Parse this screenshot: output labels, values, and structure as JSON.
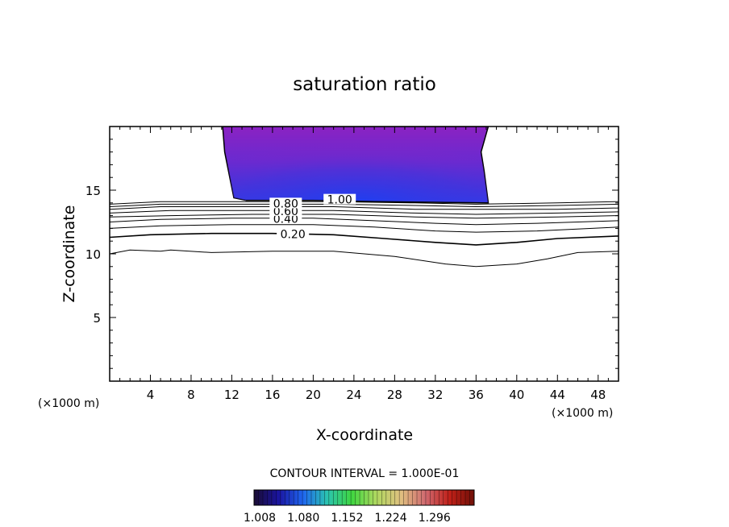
{
  "chart_data": {
    "type": "contour",
    "title": "saturation ratio",
    "xlabel": "X-coordinate",
    "ylabel": "Z-coordinate",
    "x_unit": "(×1000 m)",
    "z_unit": "(×1000 m)",
    "xlim": [
      0,
      50
    ],
    "ylim": [
      0,
      20
    ],
    "x_ticks": [
      "4",
      "8",
      "12",
      "16",
      "20",
      "24",
      "28",
      "32",
      "36",
      "40",
      "44",
      "48"
    ],
    "y_ticks": [
      "5",
      "10",
      "15"
    ],
    "contour_interval_text": "CONTOUR INTERVAL = 1.000E-01",
    "contour_labels": [
      {
        "text": "0.20",
        "x": 18,
        "z": 11.5
      },
      {
        "text": "0.40",
        "x": 17.3,
        "z": 12.7
      },
      {
        "text": "0.60",
        "x": 17.3,
        "z": 13.3
      },
      {
        "text": "0.80",
        "x": 17.3,
        "z": 13.9
      },
      {
        "text": "1.00",
        "x": 22.6,
        "z": 14.2
      }
    ],
    "contour_lines": [
      {
        "level": 0.1,
        "points": [
          [
            0,
            10
          ],
          [
            2,
            10.3
          ],
          [
            5,
            10.2
          ],
          [
            6,
            10.3
          ],
          [
            10,
            10.1
          ],
          [
            16,
            10.2
          ],
          [
            22,
            10.2
          ],
          [
            28,
            9.8
          ],
          [
            33,
            9.2
          ],
          [
            36,
            9.0
          ],
          [
            40,
            9.2
          ],
          [
            43,
            9.6
          ],
          [
            46,
            10.1
          ],
          [
            50,
            10.2
          ]
        ]
      },
      {
        "level": 0.2,
        "points": [
          [
            0,
            11.3
          ],
          [
            4,
            11.5
          ],
          [
            10,
            11.6
          ],
          [
            16,
            11.6
          ],
          [
            22,
            11.5
          ],
          [
            27,
            11.2
          ],
          [
            32,
            10.9
          ],
          [
            36,
            10.7
          ],
          [
            40,
            10.9
          ],
          [
            44,
            11.2
          ],
          [
            50,
            11.4
          ]
        ]
      },
      {
        "level": 0.3,
        "points": [
          [
            0,
            12.0
          ],
          [
            5,
            12.2
          ],
          [
            12,
            12.3
          ],
          [
            20,
            12.3
          ],
          [
            26,
            12.1
          ],
          [
            32,
            11.8
          ],
          [
            36,
            11.7
          ],
          [
            42,
            11.8
          ],
          [
            50,
            12.1
          ]
        ]
      },
      {
        "level": 0.4,
        "points": [
          [
            0,
            12.5
          ],
          [
            5,
            12.7
          ],
          [
            12,
            12.8
          ],
          [
            20,
            12.8
          ],
          [
            26,
            12.6
          ],
          [
            32,
            12.4
          ],
          [
            36,
            12.3
          ],
          [
            42,
            12.4
          ],
          [
            50,
            12.6
          ]
        ]
      },
      {
        "level": 0.5,
        "points": [
          [
            0,
            12.9
          ],
          [
            6,
            13.0
          ],
          [
            14,
            13.1
          ],
          [
            22,
            13.1
          ],
          [
            30,
            12.9
          ],
          [
            36,
            12.8
          ],
          [
            44,
            12.9
          ],
          [
            50,
            13.0
          ]
        ]
      },
      {
        "level": 0.6,
        "points": [
          [
            0,
            13.2
          ],
          [
            6,
            13.4
          ],
          [
            14,
            13.4
          ],
          [
            22,
            13.4
          ],
          [
            30,
            13.2
          ],
          [
            36,
            13.1
          ],
          [
            44,
            13.2
          ],
          [
            50,
            13.3
          ]
        ]
      },
      {
        "level": 0.7,
        "points": [
          [
            0,
            13.5
          ],
          [
            5,
            13.7
          ],
          [
            14,
            13.7
          ],
          [
            22,
            13.7
          ],
          [
            30,
            13.5
          ],
          [
            36,
            13.5
          ],
          [
            44,
            13.5
          ],
          [
            50,
            13.6
          ]
        ]
      },
      {
        "level": 0.8,
        "points": [
          [
            0,
            13.7
          ],
          [
            5,
            13.9
          ],
          [
            14,
            13.9
          ],
          [
            22,
            13.9
          ],
          [
            30,
            13.8
          ],
          [
            36,
            13.7
          ],
          [
            44,
            13.8
          ],
          [
            50,
            13.9
          ]
        ]
      },
      {
        "level": 0.9,
        "points": [
          [
            0,
            13.9
          ],
          [
            5,
            14.1
          ],
          [
            14,
            14.1
          ],
          [
            22,
            14.1
          ],
          [
            30,
            14.0
          ],
          [
            36,
            13.9
          ],
          [
            44,
            14.0
          ],
          [
            50,
            14.1
          ]
        ]
      },
      {
        "level": 1.0,
        "points": [
          [
            13.4,
            14.2
          ],
          [
            20,
            14.2
          ],
          [
            26,
            14.1
          ],
          [
            32,
            14.05
          ],
          [
            37.2,
            14.0
          ]
        ]
      }
    ],
    "colorbar": {
      "ticks": [
        "1.008",
        "1.080",
        "1.152",
        "1.224",
        "1.296"
      ],
      "stops": [
        "#1a0c33",
        "#1a14a0",
        "#1f66f0",
        "#2bc4b0",
        "#3fd640",
        "#b0d860",
        "#e0c080",
        "#d06a70",
        "#c02018",
        "#701008"
      ]
    },
    "supersaturated_region": {
      "min": 1.008,
      "max": 1.08,
      "colors": {
        "low": "#8a23c4",
        "high": "#1f3ef0"
      }
    }
  }
}
